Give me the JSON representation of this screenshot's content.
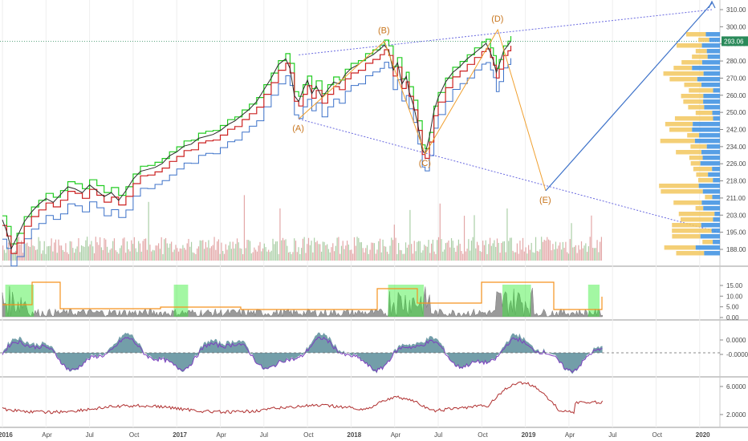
{
  "colors": {
    "price": "#2b2b2b",
    "upper_channel": "#22cc22",
    "lower_channel": "#cc2222",
    "long_channel": "#3d72c9",
    "wave_lines": "#f0a030",
    "wave_labels": "#c8761e",
    "triangle": "#6a6ae0",
    "vp_buy": "#3a8ee0",
    "vp_sell": "#f2c75e",
    "panel_fill": "#9a9a9a",
    "panel_highlight": "#33ee33",
    "panel_orange": "#f5921e",
    "osc_fill": "#5a8d9a",
    "osc_signal": "#7d3fc0",
    "ratio_line": "#b03030",
    "last_price_badge": "#2a8a5a"
  },
  "chart_data": [
    {
      "type": "line",
      "panel": "price",
      "y_ticks": [
        "310.00",
        "300.00",
        "290.00",
        "280.00",
        "270.00",
        "260.00",
        "250.00",
        "242.00",
        "234.00",
        "226.00",
        "218.00",
        "211.00",
        "203.00",
        "195.00",
        "188.00"
      ],
      "last_price": "293.06",
      "price_series": [
        [
          0,
          201
        ],
        [
          0.3,
          195
        ],
        [
          0.6,
          186
        ],
        [
          1.0,
          192
        ],
        [
          1.5,
          200
        ],
        [
          2.0,
          205
        ],
        [
          2.5,
          209
        ],
        [
          3.0,
          212
        ],
        [
          3.5,
          210
        ],
        [
          4.0,
          214
        ],
        [
          4.5,
          218
        ],
        [
          5.0,
          217
        ],
        [
          5.5,
          215
        ],
        [
          6.0,
          219
        ],
        [
          6.5,
          216
        ],
        [
          7.0,
          213
        ],
        [
          7.5,
          215
        ],
        [
          8.0,
          211
        ],
        [
          8.5,
          216
        ],
        [
          9.0,
          222
        ],
        [
          9.5,
          226
        ],
        [
          10.0,
          227
        ],
        [
          10.5,
          228
        ],
        [
          11.0,
          230
        ],
        [
          11.5,
          234
        ],
        [
          12.0,
          236
        ],
        [
          12.5,
          239
        ],
        [
          13.0,
          240
        ],
        [
          13.5,
          243
        ],
        [
          14.0,
          244
        ],
        [
          14.5,
          245
        ],
        [
          15.0,
          247
        ],
        [
          15.5,
          250
        ],
        [
          16.0,
          252
        ],
        [
          16.5,
          255
        ],
        [
          17.0,
          258
        ],
        [
          17.5,
          262
        ],
        [
          18.0,
          268
        ],
        [
          18.5,
          274
        ],
        [
          19.0,
          281
        ],
        [
          19.5,
          284
        ],
        [
          19.8,
          279
        ],
        [
          20.1,
          265
        ],
        [
          20.4,
          262
        ],
        [
          20.7,
          268
        ],
        [
          21.0,
          273
        ],
        [
          21.3,
          266
        ],
        [
          21.6,
          270
        ],
        [
          22.0,
          264
        ],
        [
          22.4,
          268
        ],
        [
          22.8,
          272
        ],
        [
          23.2,
          271
        ],
        [
          23.6,
          276
        ],
        [
          24.0,
          279
        ],
        [
          24.5,
          281
        ],
        [
          25.0,
          284
        ],
        [
          25.5,
          286
        ],
        [
          26.0,
          289
        ],
        [
          26.3,
          291
        ],
        [
          26.6,
          288
        ],
        [
          26.9,
          278
        ],
        [
          27.2,
          282
        ],
        [
          27.5,
          271
        ],
        [
          27.8,
          275
        ],
        [
          28.0,
          267
        ],
        [
          28.3,
          260
        ],
        [
          28.6,
          250
        ],
        [
          28.9,
          237
        ],
        [
          29.1,
          235
        ],
        [
          29.4,
          244
        ],
        [
          29.7,
          257
        ],
        [
          30.0,
          264
        ],
        [
          30.5,
          272
        ],
        [
          31.0,
          277
        ],
        [
          31.5,
          280
        ],
        [
          32.0,
          284
        ],
        [
          32.5,
          287
        ],
        [
          33.0,
          290
        ],
        [
          33.3,
          292
        ],
        [
          33.6,
          287
        ],
        [
          33.8,
          283
        ],
        [
          34.0,
          277
        ],
        [
          34.2,
          281
        ],
        [
          34.5,
          288
        ],
        [
          34.8,
          291
        ],
        [
          35.0,
          293.06
        ]
      ],
      "wave_points": [
        {
          "label": "(A)",
          "x": 20.4,
          "y": 253
        },
        {
          "label": "(B)",
          "x": 26.3,
          "y": 293
        },
        {
          "label": "(C)",
          "x": 29.1,
          "y": 235
        },
        {
          "label": "(D)",
          "x": 34.1,
          "y": 299
        },
        {
          "label": "(E)",
          "x": 37.4,
          "y": 216
        }
      ]
    },
    {
      "type": "area",
      "panel": "indicator_1",
      "y_ticks": [
        "15.00",
        "10.00",
        "5.00",
        "0.00"
      ]
    },
    {
      "type": "area",
      "panel": "indicator_2",
      "y_ticks": [
        "0.0000",
        "-0.0000"
      ]
    },
    {
      "type": "line",
      "panel": "indicator_3",
      "y_ticks": [
        "6.0000",
        "2.0000"
      ]
    }
  ],
  "x_axis": {
    "labels": [
      "2016",
      "Apr",
      "Jul",
      "Oct",
      "2017",
      "Apr",
      "Jul",
      "Oct",
      "2018",
      "Apr",
      "Jul",
      "Oct",
      "2019",
      "Apr",
      "Jul",
      "Oct",
      "2020"
    ],
    "bold": [
      "2016",
      "2017",
      "2018",
      "2019",
      "2020"
    ]
  }
}
